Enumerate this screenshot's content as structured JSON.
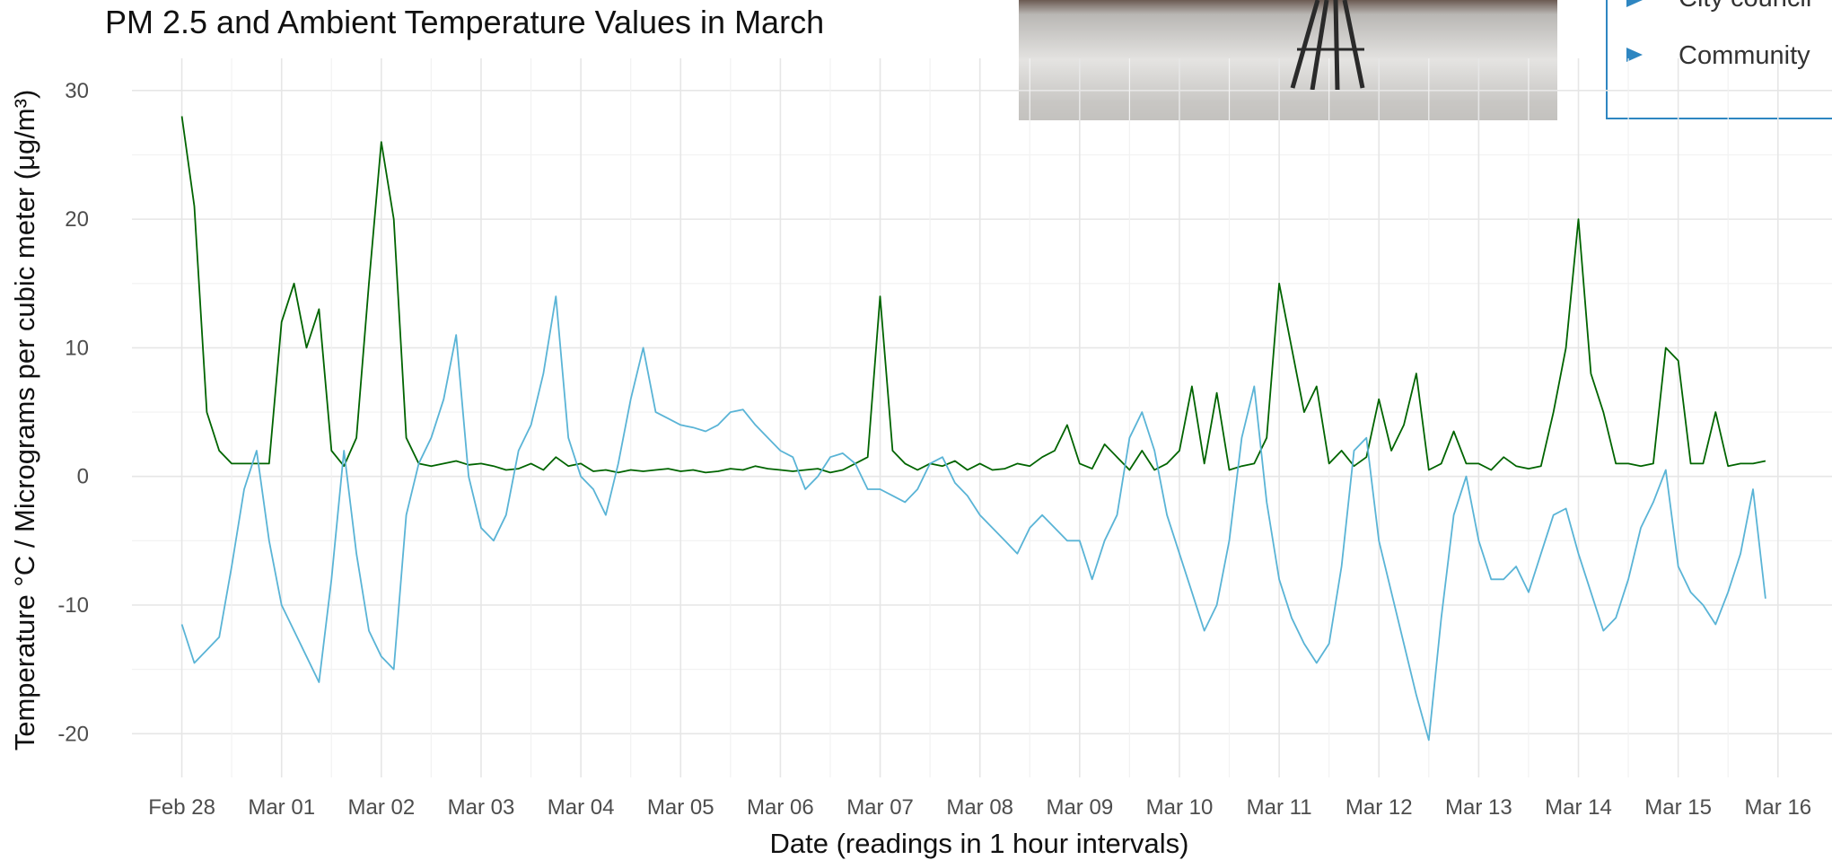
{
  "chart_data": {
    "type": "line",
    "title": "PM 2.5 and Ambient Temperature Values in March",
    "x_label": "Date (readings in 1 hour intervals)",
    "y_label": "Temperature °C / Micrograms per cubic meter (μg/m³)",
    "xlim": [
      -12,
      397
    ],
    "ylim": [
      -23.4,
      32.5
    ],
    "yticks": [
      -20,
      -10,
      0,
      10,
      20,
      30
    ],
    "xticks": [
      {
        "value": 0,
        "label": "Feb 28"
      },
      {
        "value": 24,
        "label": "Mar 01"
      },
      {
        "value": 48,
        "label": "Mar 02"
      },
      {
        "value": 72,
        "label": "Mar 03"
      },
      {
        "value": 96,
        "label": "Mar 04"
      },
      {
        "value": 120,
        "label": "Mar 05"
      },
      {
        "value": 144,
        "label": "Mar 06"
      },
      {
        "value": 168,
        "label": "Mar 07"
      },
      {
        "value": 192,
        "label": "Mar 08"
      },
      {
        "value": 216,
        "label": "Mar 09"
      },
      {
        "value": 240,
        "label": "Mar 10"
      },
      {
        "value": 264,
        "label": "Mar 11"
      },
      {
        "value": 288,
        "label": "Mar 12"
      },
      {
        "value": 312,
        "label": "Mar 13"
      },
      {
        "value": 336,
        "label": "Mar 14"
      },
      {
        "value": 360,
        "label": "Mar 15"
      },
      {
        "value": 384,
        "label": "Mar 16"
      }
    ],
    "grid": true,
    "x": [
      0,
      3,
      6,
      9,
      12,
      15,
      18,
      21,
      24,
      27,
      30,
      33,
      36,
      39,
      42,
      45,
      48,
      51,
      54,
      57,
      60,
      63,
      66,
      69,
      72,
      75,
      78,
      81,
      84,
      87,
      90,
      93,
      96,
      99,
      102,
      105,
      108,
      111,
      114,
      117,
      120,
      123,
      126,
      129,
      132,
      135,
      138,
      141,
      144,
      147,
      150,
      153,
      156,
      159,
      162,
      165,
      168,
      171,
      174,
      177,
      180,
      183,
      186,
      189,
      192,
      195,
      198,
      201,
      204,
      207,
      210,
      213,
      216,
      219,
      222,
      225,
      228,
      231,
      234,
      237,
      240,
      243,
      246,
      249,
      252,
      255,
      258,
      261,
      264,
      267,
      270,
      273,
      276,
      279,
      282,
      285,
      288,
      291,
      294,
      297,
      300,
      303,
      306,
      309,
      312,
      315,
      318,
      321,
      324,
      327,
      330,
      333,
      336,
      339,
      342,
      345,
      348,
      351,
      354,
      357,
      360,
      363,
      366,
      369,
      372,
      375,
      378,
      381
    ],
    "series": [
      {
        "color": "#006400",
        "values": [
          28,
          21,
          5,
          2,
          1,
          1,
          1,
          1,
          12,
          15,
          10,
          13,
          2,
          0.8,
          3,
          15,
          26,
          20,
          3,
          1,
          0.8,
          1,
          1.2,
          0.9,
          1,
          0.8,
          0.5,
          0.6,
          1,
          0.5,
          1.5,
          0.8,
          1,
          0.4,
          0.5,
          0.3,
          0.5,
          0.4,
          0.5,
          0.6,
          0.4,
          0.5,
          0.3,
          0.4,
          0.6,
          0.5,
          0.8,
          0.6,
          0.5,
          0.4,
          0.5,
          0.6,
          0.3,
          0.5,
          1,
          1.5,
          14,
          2,
          1,
          0.5,
          1,
          0.8,
          1.2,
          0.5,
          1,
          0.5,
          0.6,
          1,
          0.8,
          1.5,
          2,
          4,
          1,
          0.6,
          2.5,
          1.5,
          0.5,
          2,
          0.5,
          1,
          2,
          7,
          1,
          6.5,
          0.5,
          0.8,
          1,
          3,
          15,
          10,
          5,
          7,
          1,
          2,
          0.8,
          1.5,
          6,
          2,
          4,
          8,
          0.5,
          1,
          3.5,
          1,
          1,
          0.5,
          1.5,
          0.8,
          0.6,
          0.8,
          5,
          10,
          20,
          8,
          5,
          1,
          1,
          0.8,
          1,
          10,
          9,
          1,
          1,
          5,
          0.8,
          1,
          1,
          1.2
        ]
      },
      {
        "color": "#5ab4d6",
        "values": [
          -11.5,
          -14.5,
          -13.5,
          -12.5,
          -7,
          -1,
          2,
          -5,
          -10,
          -12,
          -14,
          -16,
          -8,
          2,
          -6,
          -12,
          -14,
          -15,
          -3,
          1,
          3,
          6,
          11,
          0,
          -4,
          -5,
          -3,
          2,
          4,
          8,
          14,
          3,
          0,
          -1,
          -3,
          1,
          6,
          10,
          5,
          4.5,
          4,
          3.8,
          3.5,
          4,
          5,
          5.2,
          4,
          3,
          2,
          1.5,
          -1,
          0,
          1.5,
          1.8,
          1,
          -1,
          -1,
          -1.5,
          -2,
          -1,
          1,
          1.5,
          -0.5,
          -1.5,
          -3,
          -4,
          -5,
          -6,
          -4,
          -3,
          -4,
          -5,
          -5,
          -8,
          -5,
          -3,
          3,
          5,
          2,
          -3,
          -6,
          -9,
          -12,
          -10,
          -5,
          3,
          7,
          -2,
          -8,
          -11,
          -13,
          -14.5,
          -13,
          -7,
          2,
          3,
          -5,
          -9,
          -13,
          -17,
          -20.5,
          -11,
          -3,
          0,
          -5,
          -8,
          -8,
          -7,
          -9,
          -6,
          -3,
          -2.5,
          -6,
          -9,
          -12,
          -11,
          -8,
          -4,
          -2,
          0.5,
          -7,
          -9,
          -10,
          -11.5,
          -9,
          -6,
          -1,
          -9.5
        ]
      }
    ]
  },
  "panel": {
    "bullets": [
      "City council",
      "Community"
    ]
  }
}
